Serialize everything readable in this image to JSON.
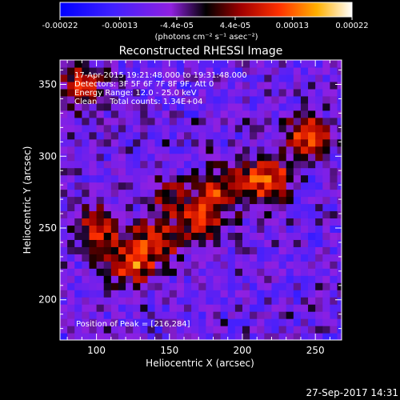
{
  "chart_data": {
    "type": "heatmap",
    "title": "Reconstructed RHESSI Image",
    "xlabel": "Heliocentric X (arcsec)",
    "ylabel": "Heliocentric Y (arcsec)",
    "xlim": [
      75,
      268
    ],
    "ylim": [
      172,
      367
    ],
    "xticks": [
      100,
      150,
      200,
      250
    ],
    "yticks": [
      200,
      250,
      300,
      350
    ],
    "colorbar": {
      "ticks": [
        "-0.00022",
        "-0.00013",
        "-4.4e-05",
        "4.4e-05",
        "0.00013",
        "0.00022"
      ],
      "label": "(photons cm⁻² s⁻¹ asec⁻²)",
      "range": [
        -0.00022,
        0.00022
      ]
    },
    "annotations": [
      "17-Apr-2015 19:21:48.000 to 19:31:48.000",
      "Detectors: 3F 5F 6F 7F 8F 9F, Att 0",
      "Energy Range: 12.0 - 25.0 keV",
      "Clean     Total counts: 1.34E+04"
    ],
    "peak_label": "Position of Peak = [216,284]",
    "peak": [
      216,
      284
    ],
    "sources": [
      {
        "x": 216,
        "y": 284,
        "amp": 0.00022
      },
      {
        "x": 245,
        "y": 313,
        "amp": 0.00019
      },
      {
        "x": 185,
        "y": 278,
        "amp": 0.00015
      },
      {
        "x": 172,
        "y": 255,
        "amp": 0.00014
      },
      {
        "x": 140,
        "y": 240,
        "amp": 0.00017
      },
      {
        "x": 122,
        "y": 225,
        "amp": 0.00016
      },
      {
        "x": 100,
        "y": 250,
        "amp": 0.00015
      },
      {
        "x": 90,
        "y": 350,
        "amp": 0.00015
      },
      {
        "x": 150,
        "y": 270,
        "amp": 0.0001
      }
    ],
    "grid": false
  },
  "footer": {
    "timestamp": "27-Sep-2017 14:31"
  }
}
